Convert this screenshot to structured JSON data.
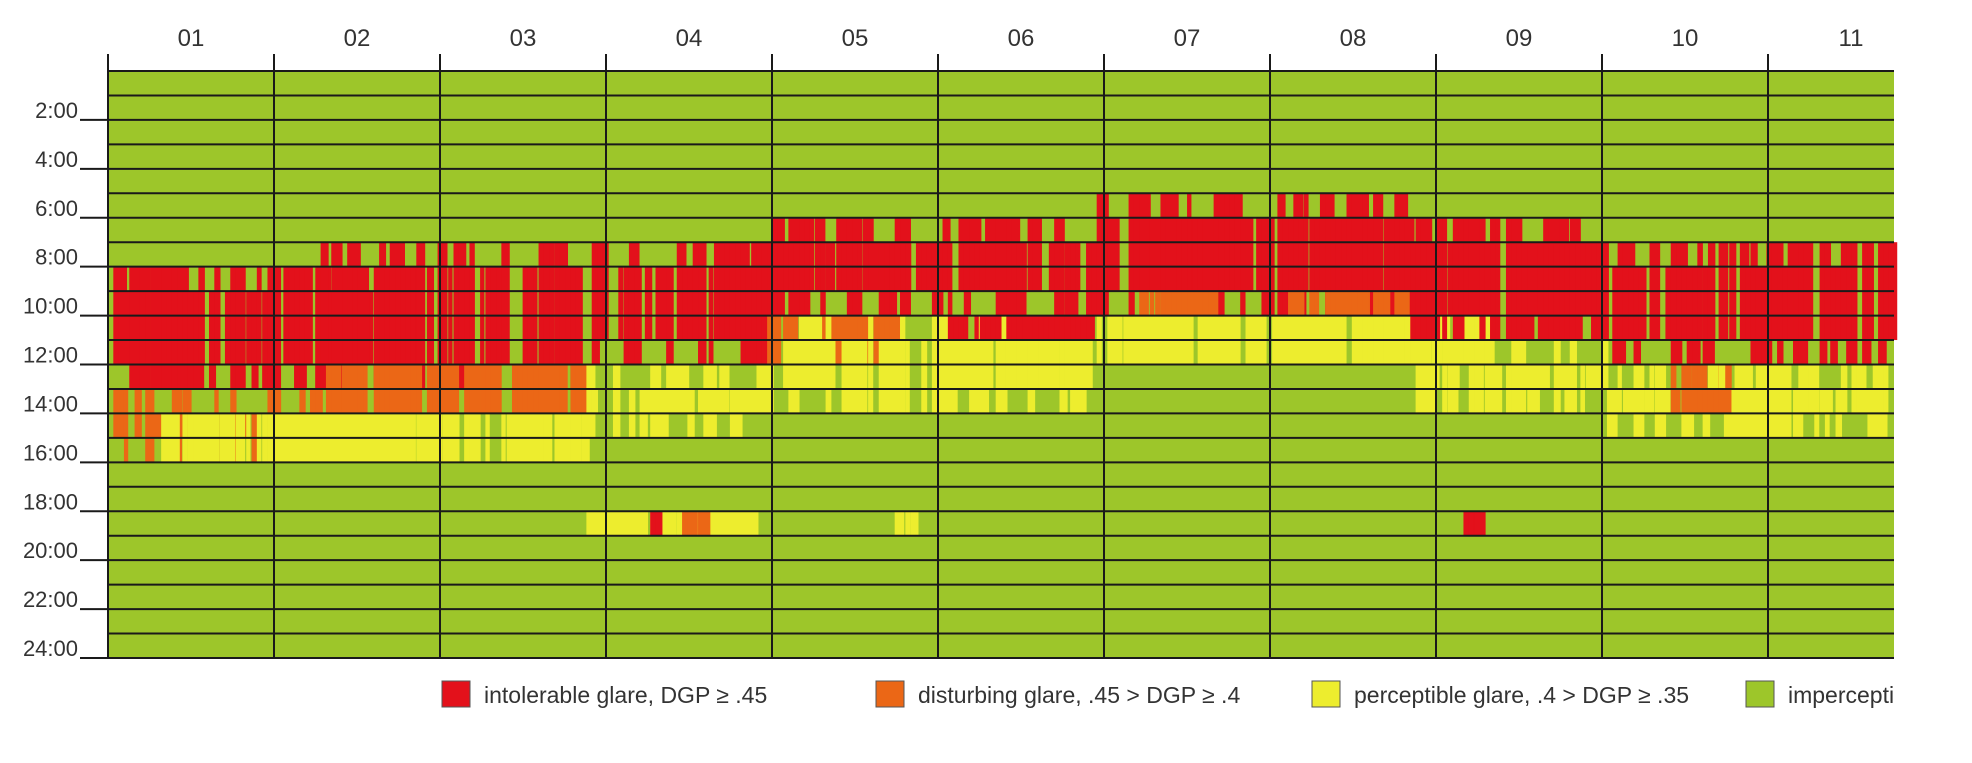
{
  "chart_data": {
    "type": "heatmap",
    "title": "",
    "xlabel": "",
    "ylabel": "",
    "x_categories": [
      "01",
      "02",
      "03",
      "04",
      "05",
      "06",
      "07",
      "08",
      "09",
      "10",
      "11"
    ],
    "y_tick_labels": [
      "2:00",
      "4:00",
      "6:00",
      "8:00",
      "10:00",
      "12:00",
      "14:00",
      "16:00",
      "18:00",
      "20:00",
      "22:00",
      "24:00"
    ],
    "y_range_hours": [
      0,
      24
    ],
    "rows_per_day": 24,
    "x_range_days": [
      0,
      336
    ],
    "grid": true,
    "legend_position": "bottom",
    "categories": [
      {
        "key": "intolerable",
        "label": "intolerable glare, DGP ≥ .45",
        "color": "#e3111b"
      },
      {
        "key": "disturbing",
        "label": "disturbing glare, .45 > DGP ≥ .4",
        "color": "#eb6716"
      },
      {
        "key": "perceptible",
        "label": "perceptible glare, .4 > DGP ≥ .35",
        "color": "#eded2e"
      },
      {
        "key": "imperceptible",
        "label": "impercepti",
        "color": "#9dc62a"
      }
    ],
    "background_category": "imperceptible",
    "glare_blocks": [
      {
        "cat": "intolerable",
        "x": [
          1,
          36
        ],
        "y": [
          8,
          13
        ]
      },
      {
        "cat": "intolerable",
        "x": [
          33,
          58
        ],
        "y": [
          8,
          13
        ]
      },
      {
        "cat": "disturbing",
        "x": [
          1,
          48
        ],
        "y": [
          13,
          16
        ]
      },
      {
        "cat": "perceptible",
        "x": [
          10,
          40
        ],
        "y": [
          14,
          16
        ]
      },
      {
        "cat": "intolerable",
        "x": [
          36,
          90
        ],
        "y": [
          7,
          13
        ]
      },
      {
        "cat": "disturbing",
        "x": [
          40,
          90
        ],
        "y": [
          12,
          14
        ]
      },
      {
        "cat": "perceptible",
        "x": [
          36,
          90
        ],
        "y": [
          14,
          16
        ]
      },
      {
        "cat": "intolerable",
        "x": [
          90,
          124
        ],
        "y": [
          7,
          12
        ]
      },
      {
        "cat": "perceptible",
        "x": [
          90,
          124
        ],
        "y": [
          12,
          15
        ]
      },
      {
        "cat": "intolerable",
        "x": [
          124,
          186
        ],
        "y": [
          6,
          10
        ]
      },
      {
        "cat": "disturbing",
        "x": [
          124,
          150
        ],
        "y": [
          10,
          12
        ]
      },
      {
        "cat": "perceptible",
        "x": [
          124,
          186
        ],
        "y": [
          10,
          14
        ]
      },
      {
        "cat": "intolerable",
        "x": [
          158,
          186
        ],
        "y": [
          10,
          11
        ]
      },
      {
        "cat": "intolerable",
        "x": [
          186,
          220
        ],
        "y": [
          5,
          10
        ]
      },
      {
        "cat": "disturbing",
        "x": [
          194,
          208
        ],
        "y": [
          9,
          10
        ]
      },
      {
        "cat": "perceptible",
        "x": [
          186,
          220
        ],
        "y": [
          10,
          12
        ]
      },
      {
        "cat": "intolerable",
        "x": [
          220,
          245
        ],
        "y": [
          5,
          10
        ]
      },
      {
        "cat": "disturbing",
        "x": [
          222,
          244
        ],
        "y": [
          9,
          10
        ]
      },
      {
        "cat": "perceptible",
        "x": [
          220,
          260
        ],
        "y": [
          10,
          12
        ]
      },
      {
        "cat": "intolerable",
        "x": [
          245,
          282
        ],
        "y": [
          6,
          11
        ]
      },
      {
        "cat": "perceptible",
        "x": [
          246,
          282
        ],
        "y": [
          11,
          14
        ]
      },
      {
        "cat": "intolerable",
        "x": [
          282,
          336
        ],
        "y": [
          7,
          12
        ]
      },
      {
        "cat": "disturbing",
        "x": [
          292,
          304
        ],
        "y": [
          12,
          13
        ]
      },
      {
        "cat": "perceptible",
        "x": [
          282,
          336
        ],
        "y": [
          12,
          15
        ]
      },
      {
        "cat": "disturbing",
        "x": [
          294,
          304
        ],
        "y": [
          13,
          14
        ]
      },
      {
        "cat": "perceptible",
        "x": [
          90,
          124
        ],
        "y": [
          18,
          19
        ]
      },
      {
        "cat": "intolerable",
        "x": [
          102,
          104
        ],
        "y": [
          18,
          19
        ]
      },
      {
        "cat": "disturbing",
        "x": [
          108,
          112
        ],
        "y": [
          18,
          19
        ]
      },
      {
        "cat": "perceptible",
        "x": [
          148,
          152
        ],
        "y": [
          18,
          19
        ]
      },
      {
        "cat": "intolerable",
        "x": [
          255,
          258
        ],
        "y": [
          18,
          19
        ]
      }
    ]
  }
}
